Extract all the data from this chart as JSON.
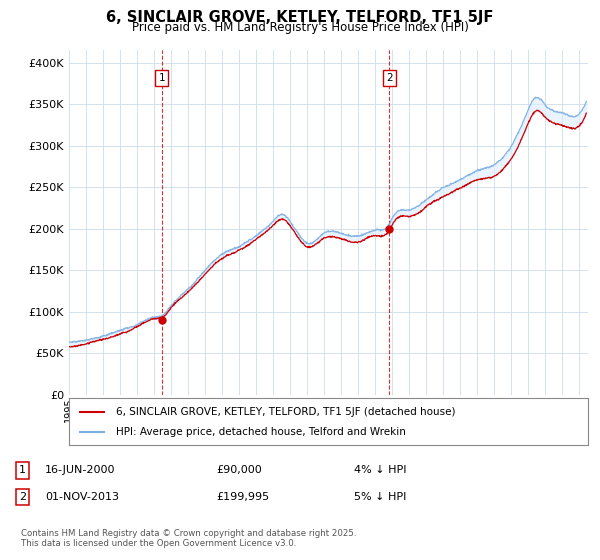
{
  "title": "6, SINCLAIR GROVE, KETLEY, TELFORD, TF1 5JF",
  "subtitle": "Price paid vs. HM Land Registry's House Price Index (HPI)",
  "ytick_values": [
    0,
    50000,
    100000,
    150000,
    200000,
    250000,
    300000,
    350000,
    400000
  ],
  "ylim": [
    0,
    415000
  ],
  "sale1_date": 2000.46,
  "sale1_price": 90000,
  "sale2_date": 2013.83,
  "sale2_price": 199995,
  "legend_line1": "6, SINCLAIR GROVE, KETLEY, TELFORD, TF1 5JF (detached house)",
  "legend_line2": "HPI: Average price, detached house, Telford and Wrekin",
  "annotation1_label": "1",
  "annotation1_date": "16-JUN-2000",
  "annotation1_price": "£90,000",
  "annotation1_pct": "4% ↓ HPI",
  "annotation2_label": "2",
  "annotation2_date": "01-NOV-2013",
  "annotation2_price": "£199,995",
  "annotation2_pct": "5% ↓ HPI",
  "footer": "Contains HM Land Registry data © Crown copyright and database right 2025.\nThis data is licensed under the Open Government Licence v3.0.",
  "line_color_red": "#cc0000",
  "line_color_blue": "#7aade0",
  "fill_color_blue": "#ddeeff",
  "grid_color": "#ccddee",
  "bg_color": "#ffffff",
  "xmin": 1995.0,
  "xmax": 2025.5
}
